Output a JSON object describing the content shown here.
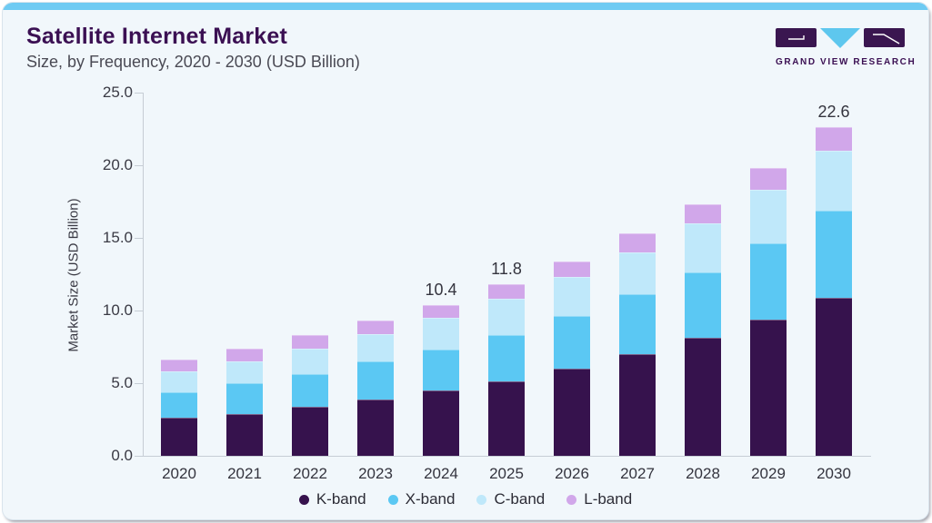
{
  "header": {
    "title": "Satellite Internet Market",
    "subtitle": "Size, by Frequency, 2020 - 2030 (USD Billion)",
    "logo_text": "GRAND VIEW RESEARCH"
  },
  "chart_data": {
    "type": "bar",
    "stacked": true,
    "title": "Satellite Internet Market Size, by Frequency, 2020 - 2030 (USD Billion)",
    "ylabel": "Market Size (USD Billion)",
    "xlabel": "",
    "ylim": [
      0,
      25
    ],
    "yticks": [
      0,
      5,
      10,
      15,
      20,
      25
    ],
    "ytick_labels": [
      "0.0",
      "5.0",
      "10.0",
      "15.0",
      "20.0",
      "25.0"
    ],
    "grid": false,
    "legend_position": "bottom",
    "categories": [
      "2020",
      "2021",
      "2022",
      "2023",
      "2024",
      "2025",
      "2026",
      "2027",
      "2028",
      "2029",
      "2030"
    ],
    "series": [
      {
        "name": "K-band",
        "color": "#36124d",
        "values": [
          2.6,
          2.9,
          3.4,
          3.9,
          4.5,
          5.1,
          6.0,
          7.0,
          8.1,
          9.4,
          10.9
        ]
      },
      {
        "name": "X-band",
        "color": "#5bc8f3",
        "values": [
          1.8,
          2.1,
          2.2,
          2.6,
          2.8,
          3.2,
          3.6,
          4.1,
          4.5,
          5.2,
          6.0
        ]
      },
      {
        "name": "C-band",
        "color": "#bfe8fa",
        "values": [
          1.4,
          1.5,
          1.8,
          1.9,
          2.2,
          2.5,
          2.7,
          2.9,
          3.4,
          3.7,
          4.1
        ]
      },
      {
        "name": "L-band",
        "color": "#d1a7ea",
        "values": [
          0.8,
          0.9,
          0.9,
          0.9,
          0.9,
          1.0,
          1.1,
          1.3,
          1.3,
          1.5,
          1.6
        ]
      }
    ],
    "bar_total_labels": {
      "2024": "10.4",
      "2025": "11.8",
      "2030": "22.6"
    }
  },
  "theme": {
    "top_strip": "#6fcbf3",
    "title_color": "#3b1053",
    "card_bg": "#f1f7fb",
    "axis_color": "#c6cdd5",
    "text_color": "#3a3a44",
    "logo_purple": "#3a1650",
    "logo_triangle": "#5ec7ee"
  }
}
